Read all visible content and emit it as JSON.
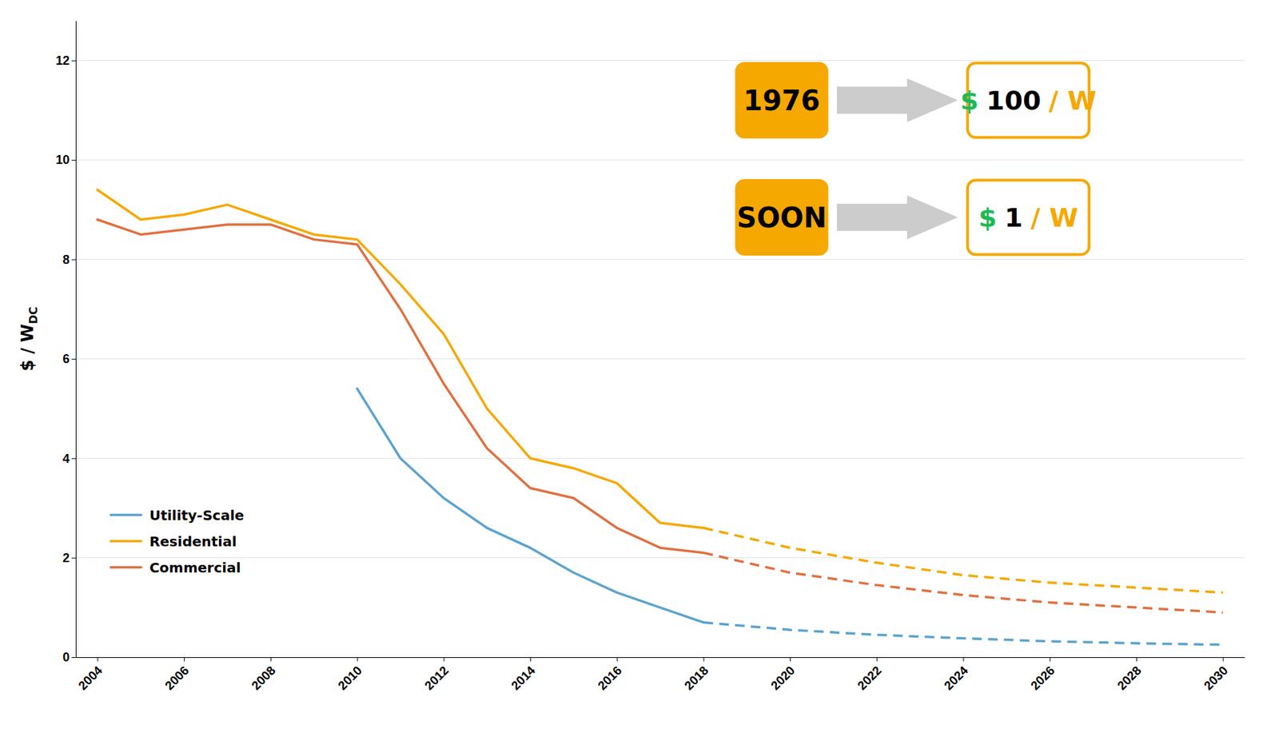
{
  "chart_data": {
    "type": "line",
    "y_label": {
      "text": "$ / W",
      "subscript": "DC"
    },
    "xlim": [
      2003.5,
      2030.5
    ],
    "ylim": [
      0,
      12.8
    ],
    "xticks": [
      2004,
      2006,
      2008,
      2010,
      2012,
      2014,
      2016,
      2018,
      2020,
      2022,
      2024,
      2026,
      2028,
      2030
    ],
    "yticks": [
      0,
      2,
      4,
      6,
      8,
      10,
      12
    ],
    "grid": true,
    "legend": "lower left",
    "series": [
      {
        "name": "Utility-Scale",
        "color": "#5ba3d0",
        "line_style": "solid",
        "x": [
          2010,
          2011,
          2012,
          2013,
          2014,
          2015,
          2016,
          2017,
          2018
        ],
        "values": [
          5.4,
          4.0,
          3.2,
          2.6,
          2.2,
          1.7,
          1.3,
          1.0,
          0.7
        ]
      },
      {
        "name": "Residential",
        "color": "#f5a800",
        "line_style": "solid",
        "x": [
          2004,
          2005,
          2006,
          2007,
          2008,
          2009,
          2010,
          2011,
          2012,
          2013,
          2014,
          2015,
          2016,
          2017,
          2018
        ],
        "values": [
          9.4,
          8.8,
          8.9,
          9.1,
          8.8,
          8.5,
          8.4,
          7.5,
          6.5,
          5.0,
          4.0,
          3.8,
          3.5,
          2.7,
          2.6
        ]
      },
      {
        "name": "Commercial",
        "color": "#e07040",
        "line_style": "solid",
        "x": [
          2004,
          2005,
          2006,
          2007,
          2008,
          2009,
          2010,
          2011,
          2012,
          2013,
          2014,
          2015,
          2016,
          2017,
          2018
        ],
        "values": [
          8.8,
          8.5,
          8.6,
          8.7,
          8.7,
          8.4,
          8.3,
          7.0,
          5.5,
          4.2,
          3.4,
          3.2,
          2.6,
          2.2,
          2.1
        ]
      },
      {
        "color": "#5ba3d0",
        "line_style": "dashed",
        "x": [
          2018,
          2020,
          2022,
          2024,
          2026,
          2028,
          2030
        ],
        "values": [
          0.7,
          0.55,
          0.45,
          0.38,
          0.32,
          0.28,
          0.25
        ]
      },
      {
        "color": "#f5a800",
        "line_style": "dashed",
        "x": [
          2018,
          2020,
          2022,
          2024,
          2026,
          2028,
          2030
        ],
        "values": [
          2.6,
          2.2,
          1.9,
          1.65,
          1.5,
          1.4,
          1.3
        ]
      },
      {
        "color": "#e07040",
        "line_style": "dashed",
        "x": [
          2018,
          2020,
          2022,
          2024,
          2026,
          2028,
          2030
        ],
        "values": [
          2.1,
          1.7,
          1.45,
          1.25,
          1.1,
          1.0,
          0.9
        ]
      }
    ],
    "annotations": [
      {
        "from": "1976",
        "color": "#f5a800",
        "arrow_color": "#cccccc",
        "to": [
          {
            "text": "$",
            "color": "#1db954"
          },
          {
            "text": "100",
            "color": "#000000"
          },
          {
            "text": "/ W",
            "color": "#f5a800"
          }
        ]
      },
      {
        "from": "SOON",
        "color": "#f5a800",
        "arrow_color": "#cccccc",
        "to": [
          {
            "text": "$",
            "color": "#1db954"
          },
          {
            "text": "1",
            "color": "#000000"
          },
          {
            "text": "/ W",
            "color": "#f5a800"
          }
        ]
      }
    ]
  }
}
